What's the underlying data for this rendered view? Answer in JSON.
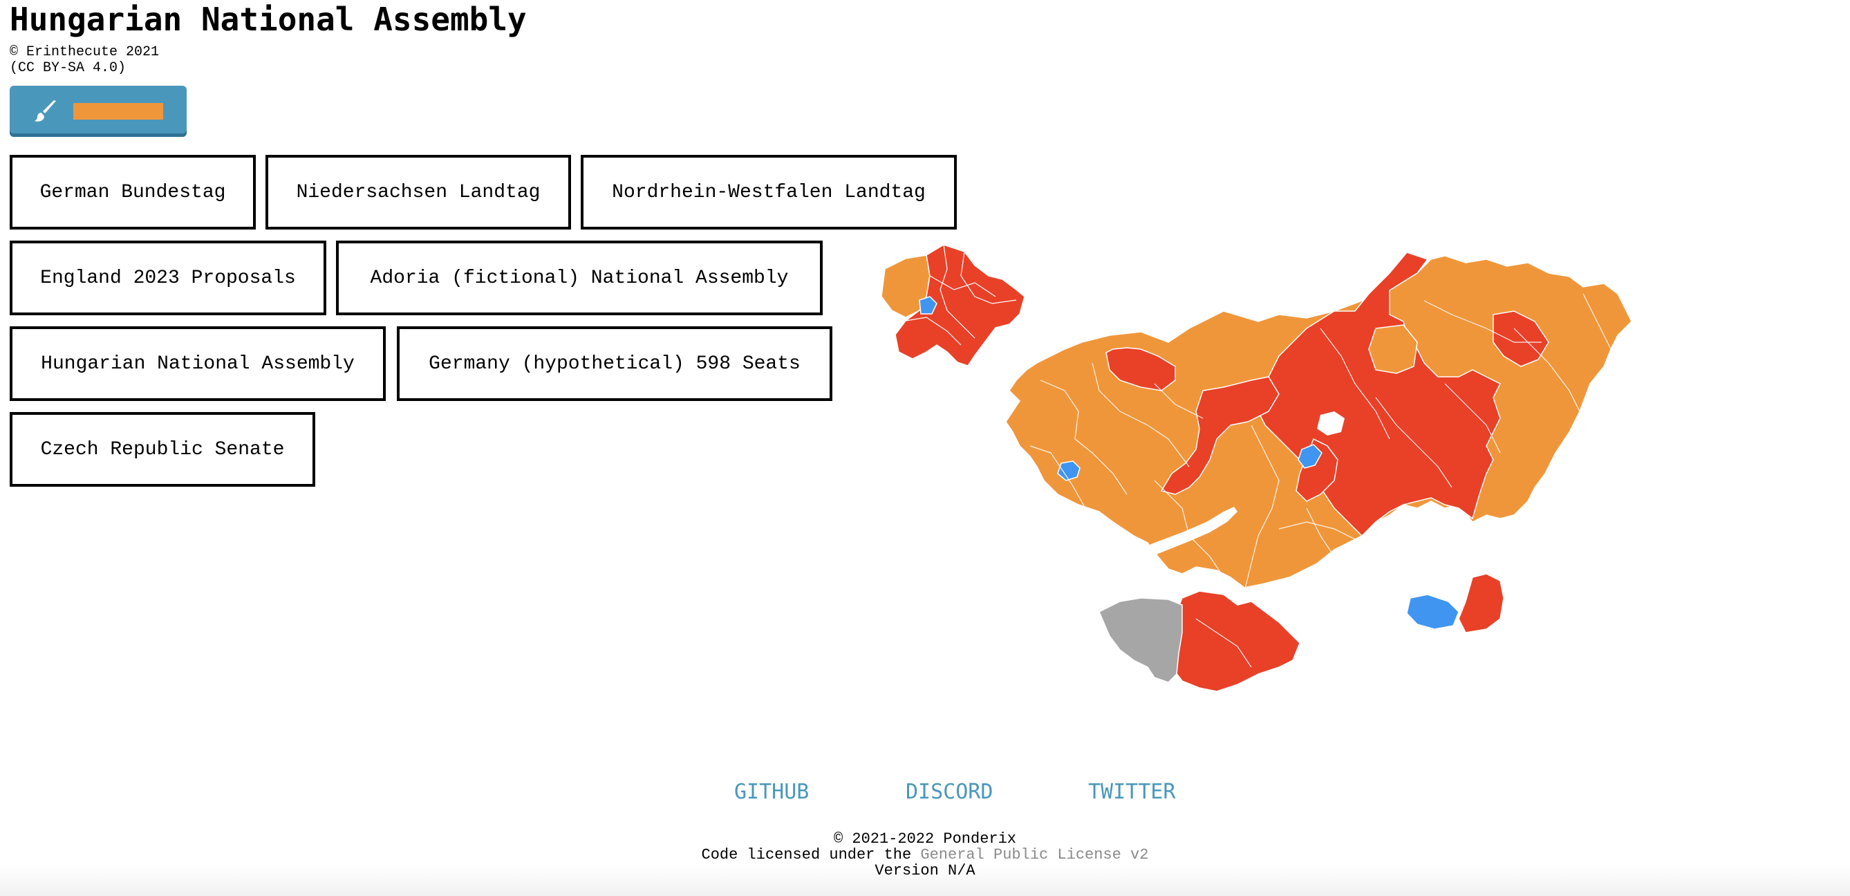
{
  "header": {
    "title": "Hungarian National Assembly",
    "credit_line1": "© Erinthecute 2021",
    "credit_line2": "(CC BY-SA 4.0)"
  },
  "paint_tool": {
    "icon": "paintbrush-icon",
    "selected_color": "#f0963a"
  },
  "maps": [
    {
      "label": "German Bundestag"
    },
    {
      "label": "Niedersachsen Landtag"
    },
    {
      "label": "Nordrhein-Westfalen Landtag"
    },
    {
      "label": "England 2023 Proposals"
    },
    {
      "label": "Adoria (fictional) National Assembly"
    },
    {
      "label": "Hungarian National Assembly"
    },
    {
      "label": "Germany (hypothetical) 598 Seats"
    },
    {
      "label": "Czech Republic Senate"
    }
  ],
  "party_colors": {
    "orange": "#f0963a",
    "red": "#e84128",
    "blue": "#3f95f0",
    "gray": "#a6a6a6"
  },
  "footer": {
    "links": [
      "GITHUB",
      "DISCORD",
      "TWITTER"
    ],
    "copyright": "© 2021-2022 Ponderix",
    "license_prefix": "Code licensed under the ",
    "license_link": "General Public License v2",
    "version": "Version N/A"
  }
}
